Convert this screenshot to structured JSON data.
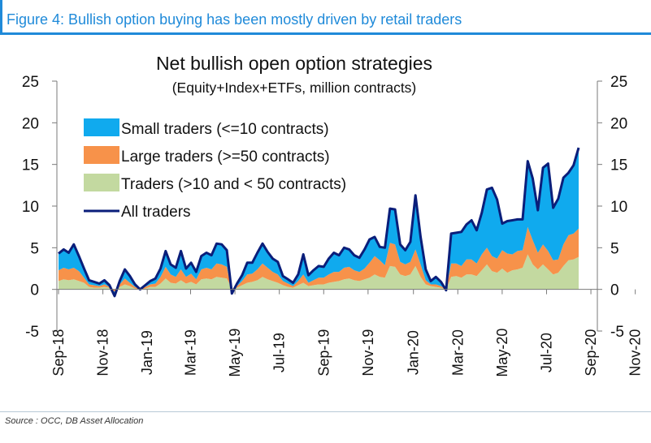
{
  "figure": {
    "title": "Figure 4: Bullish option buying has been mostly driven by retail traders",
    "source": "Source : OCC, DB Asset Allocation"
  },
  "chart_data": {
    "type": "area",
    "title": "Net bullish open option strategies",
    "subtitle": "(Equity+Index+ETFs, million contracts)",
    "xlabel": "",
    "ylabel": "",
    "ylim": [
      -5,
      25
    ],
    "yticks": [
      "25",
      "20",
      "15",
      "10",
      "5",
      "0",
      "-5"
    ],
    "ytick_values": [
      25,
      20,
      15,
      10,
      5,
      0,
      -5
    ],
    "x_tick_labels": [
      "Sep-18",
      "Nov-18",
      "Jan-19",
      "Mar-19",
      "May-19",
      "Jul-19",
      "Sep-19",
      "Nov-19",
      "Jan-20",
      "Mar-20",
      "May-20",
      "Jul-20",
      "Sep-20",
      "Nov-20"
    ],
    "x_tick_positions": [
      0,
      8.7,
      17.4,
      25.9,
      34.6,
      43.3,
      52.0,
      60.7,
      69.6,
      78.3,
      87.0,
      95.7,
      104.4,
      113.1
    ],
    "x_range": [
      0,
      117.5
    ],
    "legend_position": "top-left",
    "colors": {
      "small": "#10aaee",
      "large": "#f7924a",
      "mid": "#c3d9a0",
      "all": "#0a1e7a"
    },
    "series": [
      {
        "name": "Traders (>10 and < 50 contracts)",
        "key": "mid",
        "values": [
          1.0,
          1.2,
          1.1,
          1.2,
          1.0,
          0.8,
          0.3,
          0.2,
          0.2,
          0.3,
          0.2,
          0.0,
          0.3,
          0.6,
          0.4,
          0.1,
          0.0,
          0.1,
          0.3,
          0.3,
          0.7,
          1.3,
          0.8,
          0.7,
          1.1,
          0.7,
          0.9,
          0.6,
          1.2,
          1.3,
          1.2,
          1.5,
          1.4,
          1.3,
          0.1,
          0.2,
          0.5,
          0.8,
          0.9,
          1.1,
          1.5,
          1.2,
          1.0,
          0.8,
          0.5,
          0.3,
          0.2,
          0.5,
          0.8,
          0.4,
          0.5,
          0.6,
          0.6,
          0.8,
          0.9,
          1.0,
          1.2,
          1.3,
          1.1,
          1.0,
          1.2,
          1.4,
          1.8,
          1.5,
          1.4,
          2.8,
          2.7,
          1.8,
          1.6,
          1.8,
          2.8,
          1.5,
          0.6,
          0.4,
          0.3,
          0.2,
          0.0,
          1.5,
          1.6,
          1.4,
          1.8,
          1.8,
          1.6,
          2.3,
          3.0,
          2.2,
          2.0,
          2.5,
          2.0,
          2.3,
          2.4,
          2.6,
          4.2,
          3.0,
          2.4,
          3.0,
          2.4,
          1.8,
          2.0,
          2.8,
          3.5,
          3.6,
          3.9
        ],
        "row_y": 0
      },
      {
        "name": "Large traders (>=50 contracts)",
        "key": "large",
        "values": [
          1.3,
          1.4,
          1.3,
          1.4,
          1.2,
          0.6,
          0.3,
          0.3,
          0.2,
          0.3,
          0.1,
          -0.3,
          0.3,
          0.7,
          0.4,
          0.2,
          0.0,
          0.2,
          0.3,
          0.4,
          0.8,
          1.4,
          1.0,
          0.8,
          1.3,
          0.8,
          1.0,
          0.6,
          1.2,
          1.3,
          1.2,
          1.6,
          1.6,
          1.4,
          -0.4,
          0.2,
          0.5,
          1.0,
          1.0,
          1.3,
          1.6,
          1.4,
          1.1,
          1.0,
          0.5,
          0.4,
          0.2,
          0.5,
          1.0,
          0.4,
          0.6,
          0.8,
          0.8,
          1.0,
          1.2,
          1.1,
          1.4,
          1.4,
          1.2,
          1.1,
          1.3,
          1.8,
          2.2,
          2.0,
          1.5,
          2.8,
          2.7,
          1.5,
          1.4,
          1.5,
          2.0,
          1.5,
          0.5,
          0.2,
          0.3,
          0.2,
          0.0,
          1.6,
          1.5,
          1.4,
          1.8,
          1.8,
          1.5,
          1.9,
          2.0,
          1.8,
          1.7,
          2.2,
          2.3,
          1.9,
          2.2,
          2.1,
          3.3,
          2.9,
          2.0,
          2.4,
          2.2,
          1.7,
          1.6,
          2.6,
          3.0,
          3.1,
          3.4
        ],
        "row_y": 1
      },
      {
        "name": "Small traders (<=10 contracts)",
        "key": "small",
        "values": [
          2.0,
          2.2,
          2.0,
          2.8,
          1.8,
          1.1,
          0.5,
          0.4,
          0.3,
          0.5,
          0.2,
          -0.5,
          0.4,
          1.1,
          0.8,
          0.3,
          0.0,
          0.2,
          0.4,
          0.6,
          1.0,
          1.9,
          1.2,
          1.1,
          2.2,
          1.0,
          1.3,
          0.9,
          1.6,
          1.8,
          1.7,
          2.4,
          2.4,
          2.0,
          -0.2,
          0.3,
          0.7,
          1.4,
          1.3,
          2.0,
          2.4,
          1.9,
          1.6,
          1.5,
          0.6,
          0.5,
          0.4,
          0.8,
          2.4,
          0.9,
          1.2,
          1.4,
          1.3,
          1.9,
          2.3,
          2.0,
          2.4,
          2.1,
          1.8,
          1.7,
          2.3,
          2.8,
          2.3,
          1.6,
          2.1,
          4.1,
          4.2,
          2.1,
          1.7,
          2.4,
          6.5,
          3.3,
          1.3,
          0.4,
          0.9,
          0.5,
          -0.1,
          3.6,
          3.7,
          4.1,
          4.2,
          4.7,
          4.0,
          5.0,
          7.0,
          8.2,
          7.1,
          3.2,
          3.9,
          4.1,
          3.8,
          3.7,
          7.9,
          7.4,
          5.1,
          9.2,
          10.5,
          6.3,
          7.3,
          8.0,
          7.5,
          8.2,
          9.7
        ],
        "row_y": 2
      }
    ],
    "all_traders": {
      "name": "All traders",
      "values": [
        4.3,
        4.8,
        4.4,
        5.4,
        4.0,
        2.5,
        1.1,
        0.9,
        0.7,
        1.1,
        0.5,
        -0.8,
        1.0,
        2.4,
        1.6,
        0.6,
        0.0,
        0.5,
        1.0,
        1.3,
        2.5,
        4.6,
        3.0,
        2.6,
        4.6,
        2.5,
        3.2,
        2.1,
        4.0,
        4.4,
        4.1,
        5.5,
        5.4,
        4.7,
        -0.5,
        0.7,
        1.7,
        3.2,
        3.2,
        4.4,
        5.5,
        4.5,
        3.7,
        3.3,
        1.6,
        1.2,
        0.8,
        1.8,
        4.2,
        1.7,
        2.3,
        2.8,
        2.7,
        3.7,
        4.4,
        4.1,
        5.0,
        4.8,
        4.1,
        3.8,
        4.8,
        6.0,
        6.3,
        5.1,
        5.0,
        9.7,
        9.6,
        5.4,
        4.7,
        5.7,
        11.3,
        6.3,
        2.4,
        1.0,
        1.5,
        0.9,
        -0.1,
        6.7,
        6.8,
        6.9,
        7.8,
        8.3,
        7.1,
        9.2,
        12.0,
        12.2,
        10.8,
        7.9,
        8.2,
        8.3,
        8.4,
        8.4,
        15.4,
        13.3,
        9.5,
        14.6,
        15.1,
        9.8,
        10.9,
        13.4,
        14.0,
        14.9,
        17.0
      ]
    }
  }
}
